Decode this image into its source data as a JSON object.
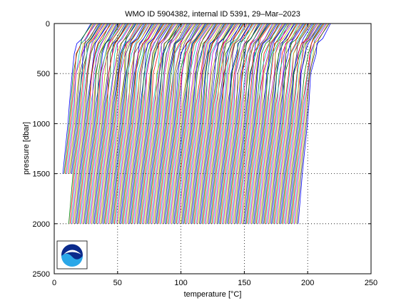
{
  "chart_data": {
    "type": "line",
    "title": "WMO ID 5904382, internal ID 5391, 29–Mar–2023",
    "xlabel": "temperature [°C]",
    "ylabel": "pressure [dbar]",
    "xlim": [
      0,
      250
    ],
    "ylim": [
      0,
      2500
    ],
    "y_reversed": true,
    "grid": true,
    "grid_style": "dotted",
    "xticks": [
      "0",
      "50",
      "100",
      "150",
      "200",
      "250"
    ],
    "yticks": [
      "0",
      "500",
      "1000",
      "1500",
      "2000",
      "2500"
    ],
    "profile_count": 190,
    "profile_offset_per_cycle_degC": 1,
    "profile_shape": {
      "pressure": [
        0,
        150,
        200,
        300,
        500,
        800,
        1000,
        1500,
        2000
      ],
      "temperature_offset": [
        27,
        20,
        17,
        14.6,
        12.3,
        10,
        8.8,
        4.8,
        1.5
      ]
    },
    "series_colors": [
      "#0000ff",
      "#008000",
      "#ff0000",
      "#00bfbf",
      "#bf00bf",
      "#bfbf00",
      "#404040"
    ],
    "logo": "noaa-logo"
  }
}
